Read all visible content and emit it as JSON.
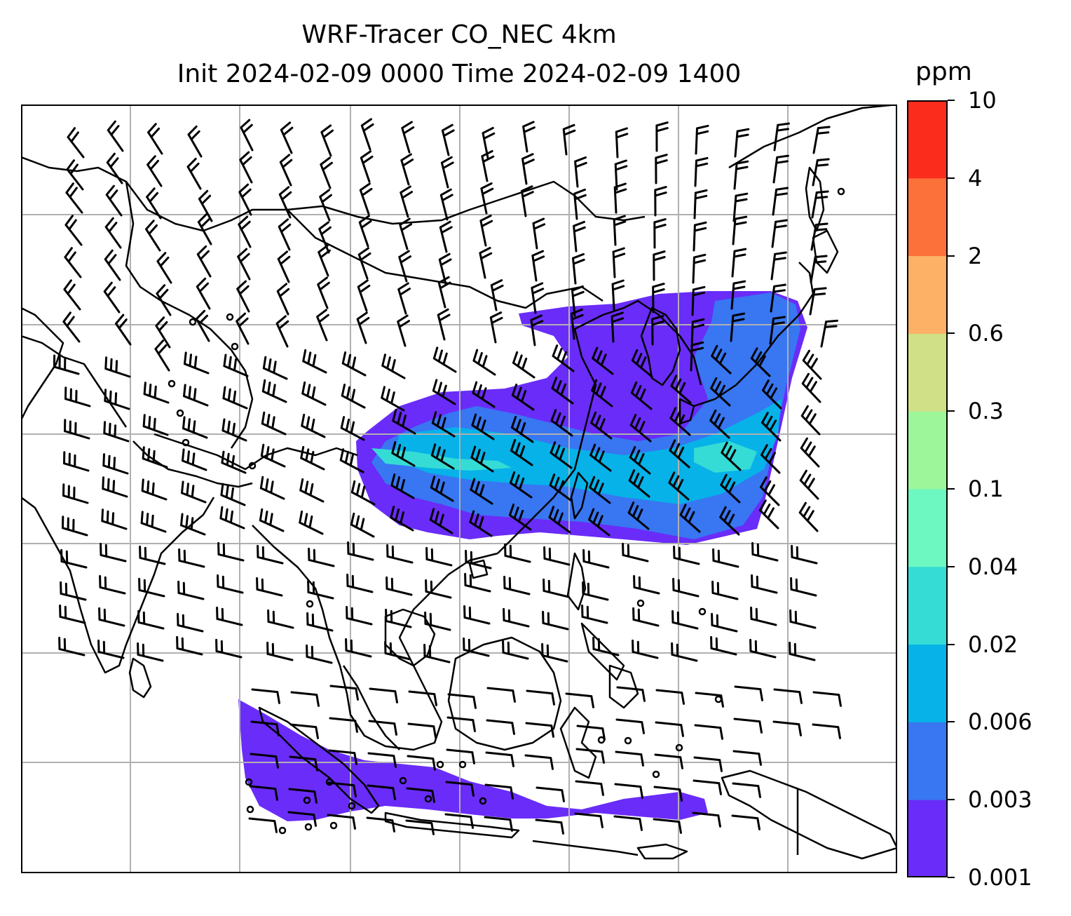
{
  "title": {
    "line1": "WRF-Tracer CO_NEC 4km",
    "line2": "Init 2024-02-09 0000 Time 2024-02-09 1400"
  },
  "colorbar": {
    "unit": "ppm",
    "ticks": [
      "0.001",
      "0.003",
      "0.006",
      "0.02",
      "0.04",
      "0.1",
      "0.3",
      "0.6",
      "2",
      "4",
      "10"
    ],
    "colors": [
      "#6a2cf8",
      "#3876f2",
      "#06b2e8",
      "#35dcd5",
      "#6cf8c0",
      "#9ef69a",
      "#d0e086",
      "#fdb166",
      "#fc7039",
      "#fc2c1c"
    ]
  },
  "map": {
    "grid": "on",
    "coastline_color": "#000000",
    "barb_color": "#000000",
    "plume_colors": {
      "low": "#6a2cf8",
      "mid": "#3876f2",
      "high": "#06b2e8",
      "peak": "#35dcd5"
    }
  }
}
